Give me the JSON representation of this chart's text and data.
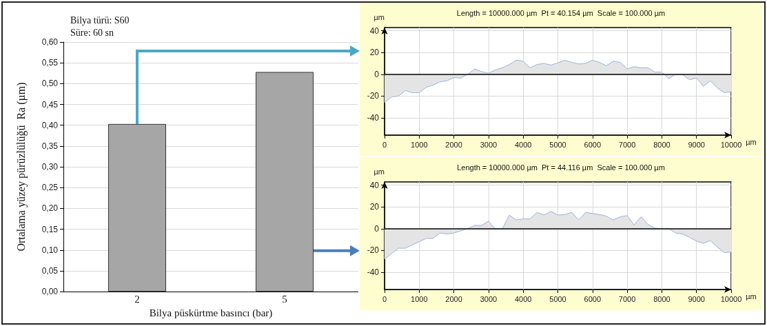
{
  "chart_data": [
    {
      "type": "bar",
      "categories": [
        "2",
        "5"
      ],
      "values": [
        0.403,
        0.528
      ],
      "color": "#a6a6a6",
      "xlabel": "Bilya püskürtme basıncı (bar)",
      "ylabel": "Ortalama yüzey pürüzlülüğü  Ra (µm)",
      "ylim": [
        0,
        0.6
      ],
      "yticks": [
        {
          "value": 0,
          "label": "0,00"
        },
        {
          "value": 0.05,
          "label": "0,05"
        },
        {
          "value": 0.1,
          "label": "0,10"
        },
        {
          "value": 0.15,
          "label": "0,15"
        },
        {
          "value": 0.2,
          "label": "0,20"
        },
        {
          "value": 0.25,
          "label": "0,25"
        },
        {
          "value": 0.3,
          "label": "0,30"
        },
        {
          "value": 0.35,
          "label": "0,35"
        },
        {
          "value": 0.4,
          "label": "0,40"
        },
        {
          "value": 0.45,
          "label": "0,45"
        },
        {
          "value": 0.5,
          "label": "0,50"
        },
        {
          "value": 0.55,
          "label": "0,55"
        },
        {
          "value": 0.6,
          "label": "0,60"
        }
      ],
      "grid": "y",
      "annotations": [
        "Bilya türü: S60",
        "Süre: 60 sn"
      ]
    },
    {
      "type": "area",
      "title": "Length = 10000.000 µm  Pt = 40.154 µm  Scale = 100.000 µm",
      "xlabel": "µm",
      "ylabel": "µm",
      "color": "#9ab3e0",
      "x": [
        0,
        200,
        400,
        600,
        800,
        1000,
        1200,
        1400,
        1600,
        1800,
        2000,
        2200,
        2400,
        2600,
        2800,
        3000,
        3200,
        3400,
        3600,
        3800,
        4000,
        4200,
        4400,
        4600,
        4800,
        5000,
        5200,
        5400,
        5600,
        5800,
        6000,
        6200,
        6400,
        6600,
        6800,
        7000,
        7200,
        7400,
        7600,
        7800,
        8000,
        8200,
        8400,
        8600,
        8800,
        9000,
        9200,
        9400,
        9600,
        9800,
        10000
      ],
      "values": [
        -26,
        -21,
        -20,
        -15,
        -17,
        -17,
        -12,
        -10,
        -7,
        -6,
        -3,
        -3.5,
        0,
        5,
        2.5,
        1,
        4,
        6,
        9,
        13,
        12,
        6,
        9,
        10,
        8.5,
        10.5,
        13,
        11,
        9.5,
        10,
        13,
        11,
        8,
        12,
        11,
        5,
        7,
        6,
        6,
        2,
        2,
        -4,
        0,
        -0.5,
        -5,
        -3.5,
        -11,
        -6,
        -12.5,
        -17,
        -16
      ],
      "xlim": [
        0,
        10000
      ],
      "xticks": [
        0,
        1000,
        2000,
        3000,
        4000,
        5000,
        6000,
        7000,
        8000,
        9000,
        10000
      ],
      "ylim": [
        -56,
        43
      ],
      "yticks": [
        -40,
        -20,
        0,
        20,
        40
      ],
      "grid": true,
      "ref_lines": [
        {
          "axis": "y",
          "value": 0,
          "color": "#000000"
        }
      ]
    },
    {
      "type": "area",
      "title": "Length = 10000.000 µm  Pt = 44.116 µm  Scale = 100.000 µm",
      "xlabel": "µm",
      "ylabel": "µm",
      "color": "#9ab3e0",
      "x": [
        0,
        200,
        400,
        600,
        800,
        1000,
        1200,
        1400,
        1600,
        1800,
        2000,
        2200,
        2400,
        2600,
        2800,
        3000,
        3200,
        3400,
        3600,
        3800,
        4000,
        4200,
        4400,
        4600,
        4800,
        5000,
        5200,
        5400,
        5600,
        5800,
        6000,
        6200,
        6400,
        6600,
        6800,
        7000,
        7200,
        7400,
        7600,
        7800,
        8000,
        8200,
        8400,
        8600,
        8800,
        9000,
        9200,
        9400,
        9600,
        9800,
        10000
      ],
      "values": [
        -28,
        -23,
        -18,
        -18,
        -15,
        -12,
        -9,
        -9,
        -4,
        -5,
        -4,
        -2,
        0,
        3,
        3,
        7,
        -0.5,
        0,
        12.5,
        8,
        9,
        9,
        15,
        12.5,
        16,
        12.5,
        13,
        15,
        8,
        15,
        14,
        13,
        11.5,
        8,
        11,
        12,
        3.5,
        11,
        4,
        0.5,
        0,
        0,
        -4,
        -5,
        -8,
        -11.5,
        -13.5,
        -11,
        -17,
        -22,
        -21.5
      ],
      "xlim": [
        0,
        10000
      ],
      "xticks": [
        0,
        1000,
        2000,
        3000,
        4000,
        5000,
        6000,
        7000,
        8000,
        9000,
        10000
      ],
      "ylim": [
        -56,
        43
      ],
      "yticks": [
        -40,
        -20,
        0,
        20,
        40
      ],
      "grid": true,
      "ref_lines": [
        {
          "axis": "y",
          "value": 0,
          "color": "#000000"
        }
      ]
    }
  ]
}
